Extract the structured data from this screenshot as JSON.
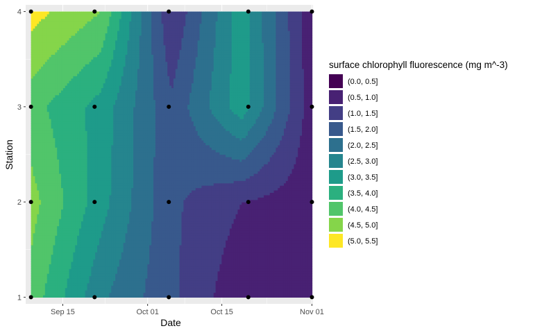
{
  "chart_data": {
    "type": "filled-contour",
    "title": "",
    "xlabel": "Date",
    "ylabel": "Station",
    "x_ticks": [
      "Sep 15",
      "Oct 01",
      "Oct 15",
      "Nov 01"
    ],
    "y_ticks": [
      "1",
      "2",
      "3",
      "4"
    ],
    "x_dates": [
      "Sep 09",
      "Sep 21",
      "Oct 05",
      "Oct 20",
      "Nov 01"
    ],
    "stations": [
      1,
      2,
      3,
      4
    ],
    "z_grid": [
      [
        4.3,
        2.6,
        1.6,
        0.6,
        0.6
      ],
      [
        4.7,
        3.2,
        1.6,
        1.0,
        0.7
      ],
      [
        4.2,
        3.3,
        1.6,
        3.3,
        0.7
      ],
      [
        5.2,
        4.5,
        1.0,
        3.3,
        0.6
      ]
    ],
    "grid": true,
    "legend": {
      "position": "right",
      "title": "surface chlorophyll fluorescence (mg m^-3)",
      "items": [
        {
          "label": "(0.0, 0.5]",
          "color": "#440154"
        },
        {
          "label": "(0.5, 1.0]",
          "color": "#482173"
        },
        {
          "label": "(1.0, 1.5]",
          "color": "#433E85"
        },
        {
          "label": "(1.5, 2.0]",
          "color": "#38598C"
        },
        {
          "label": "(2.0, 2.5]",
          "color": "#2D708E"
        },
        {
          "label": "(2.5, 3.0]",
          "color": "#25858E"
        },
        {
          "label": "(3.0, 3.5]",
          "color": "#1E9B8A"
        },
        {
          "label": "(3.5, 4.0]",
          "color": "#2BB07F"
        },
        {
          "label": "(4.0, 4.5]",
          "color": "#51C56A"
        },
        {
          "label": "(4.5, 5.0]",
          "color": "#85D54A"
        },
        {
          "label": "(5.0, 5.5]",
          "color": "#FDE725"
        }
      ]
    }
  }
}
